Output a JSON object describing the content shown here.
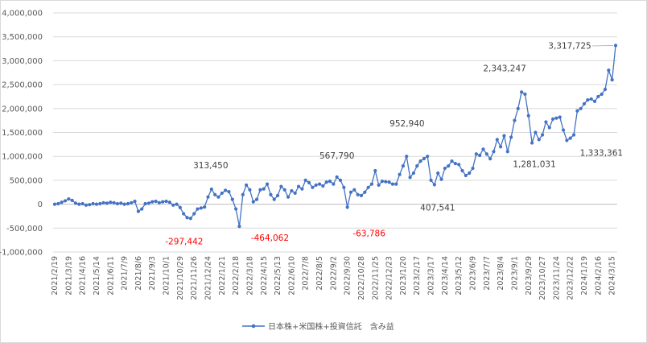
{
  "chart_data": {
    "type": "line",
    "series": [
      {
        "name": "日本株+米国株+投資信託　含み益",
        "color": "#4472c4",
        "values": [
          0,
          10000,
          40000,
          70000,
          110000,
          80000,
          20000,
          0,
          10000,
          -20000,
          -10000,
          10000,
          0,
          10000,
          30000,
          20000,
          40000,
          30000,
          10000,
          20000,
          0,
          10000,
          30000,
          60000,
          -150000,
          -100000,
          10000,
          20000,
          50000,
          60000,
          30000,
          50000,
          60000,
          40000,
          -20000,
          0,
          -70000,
          -200000,
          -280000,
          -297442,
          -200000,
          -100000,
          -80000,
          -60000,
          150000,
          313450,
          200000,
          150000,
          230000,
          290000,
          260000,
          100000,
          -100000,
          -464062,
          200000,
          400000,
          300000,
          50000,
          100000,
          300000,
          320000,
          420000,
          200000,
          100000,
          180000,
          370000,
          300000,
          150000,
          280000,
          230000,
          370000,
          320000,
          500000,
          450000,
          350000,
          400000,
          420000,
          380000,
          460000,
          480000,
          420000,
          567790,
          500000,
          350000,
          -63786,
          250000,
          300000,
          200000,
          180000,
          250000,
          350000,
          420000,
          700000,
          400000,
          480000,
          470000,
          460000,
          420000,
          420000,
          620000,
          800000,
          1000000,
          560000,
          650000,
          800000,
          900000,
          952940,
          1000000,
          500000,
          407541,
          650000,
          520000,
          750000,
          800000,
          900000,
          850000,
          830000,
          700000,
          600000,
          650000,
          750000,
          1050000,
          1020000,
          1150000,
          1050000,
          950000,
          1100000,
          1350000,
          1200000,
          1430000,
          1100000,
          1400000,
          1750000,
          2000000,
          2343247,
          2300000,
          1850000,
          1281031,
          1500000,
          1350000,
          1450000,
          1720000,
          1600000,
          1780000,
          1800000,
          1820000,
          1550000,
          1333361,
          1380000,
          1450000,
          1950000,
          2000000,
          2100000,
          2180000,
          2200000,
          2150000,
          2250000,
          2300000,
          2400000,
          2800000,
          2600000,
          3317725
        ],
        "data_labels": [
          {
            "index": 39,
            "text": "-297,442",
            "color": "#ff0000"
          },
          {
            "index": 45,
            "text": "313,450",
            "color": "#404040"
          },
          {
            "index": 53,
            "text": "-464,062",
            "color": "#ff0000"
          },
          {
            "index": 81,
            "text": "567,790",
            "color": "#404040"
          },
          {
            "index": 84,
            "text": "-63,786",
            "color": "#ff0000"
          },
          {
            "index": 106,
            "text": "952,940",
            "color": "#404040"
          },
          {
            "index": 109,
            "text": "407,541",
            "color": "#404040"
          },
          {
            "index": 134,
            "text": "2,343,247",
            "color": "#404040"
          },
          {
            "index": 137,
            "text": "1,281,031",
            "color": "#404040"
          },
          {
            "index": 147,
            "text": "1,333,361",
            "color": "#404040"
          },
          {
            "index": 161,
            "text": "3,317,725",
            "color": "#404040"
          }
        ]
      }
    ],
    "x_tick_labels": [
      "2021/2/19",
      "2021/3/19",
      "2021/4/16",
      "2021/5/14",
      "2021/6/11",
      "2021/7/9",
      "2021/8/6",
      "2021/9/3",
      "2021/10/1",
      "2021/10/29",
      "2021/11/26",
      "2021/12/24",
      "2022/1/21",
      "2022/2/18",
      "2022/3/18",
      "2022/4/15",
      "2022/5/13",
      "2022/6/10",
      "2022/7/8",
      "2022/8/5",
      "2022/9/2",
      "2022/9/30",
      "2022/10/28",
      "2022/11/25",
      "2022/12/23",
      "2023/1/20",
      "2023/2/17",
      "2023/3/17",
      "2023/4/14",
      "2023/5/12",
      "2023/6/9",
      "2023/7/7",
      "2023/8/4",
      "2023/9/1",
      "2023/9/29",
      "2023/10/27",
      "2023/11/24",
      "2023/12/22",
      "2024/1/19",
      "2024/2/16",
      "2024/3/15"
    ],
    "y_tick_labels": [
      "4,000,000",
      "3,500,000",
      "3,000,000",
      "2,500,000",
      "2,000,000",
      "1,500,000",
      "1,000,000",
      "500,000",
      "0",
      "-500,000",
      "-1,000,000"
    ],
    "ylim": [
      -1000000,
      4000000
    ],
    "y_step": 500000,
    "grid": true,
    "legend_position": "bottom",
    "title": "",
    "xlabel": "",
    "ylabel": ""
  }
}
